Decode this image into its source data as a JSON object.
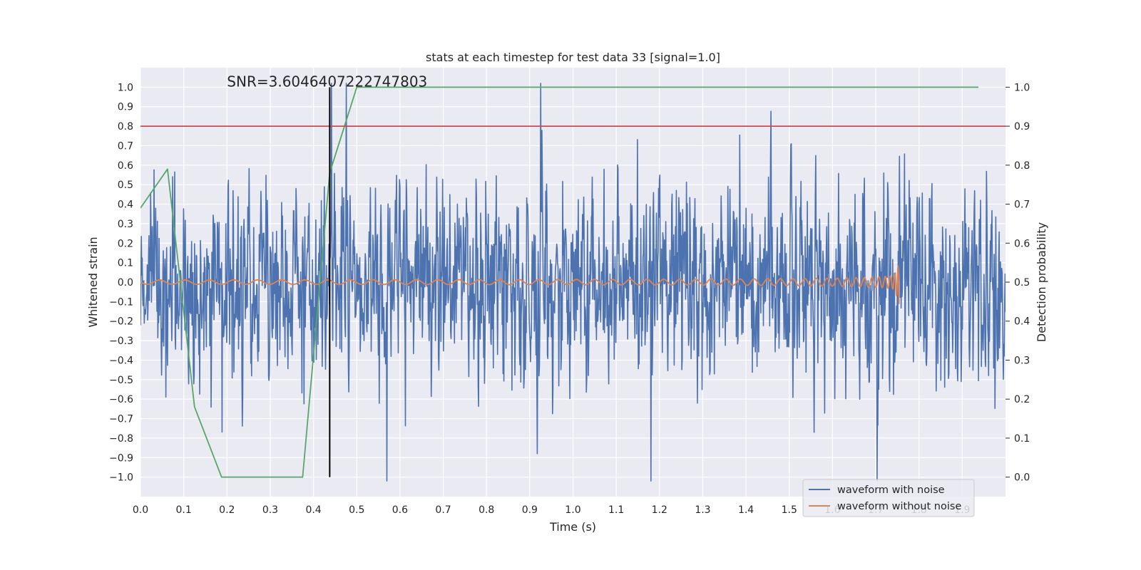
{
  "chart_data": {
    "type": "line",
    "title": "stats at each timestep for test data 33 [signal=1.0]",
    "annotation": "SNR=3.6046407222747803",
    "xlabel": "Time (s)",
    "ylabel": "Whitened strain",
    "y2label": "Detection probability",
    "xlim": [
      0.0,
      2.0
    ],
    "ylim": [
      -1.1,
      1.1
    ],
    "y2lim": [
      -0.05,
      1.05
    ],
    "xticks": [
      "0.0",
      "0.1",
      "0.2",
      "0.3",
      "0.4",
      "0.5",
      "0.6",
      "0.7",
      "0.8",
      "0.9",
      "1.0",
      "1.1",
      "1.2",
      "1.3",
      "1.4",
      "1.5",
      "1.6",
      "1.7",
      "1.8",
      "1.9"
    ],
    "yticks": [
      "1.0",
      "0.9",
      "0.8",
      "0.7",
      "0.6",
      "0.5",
      "0.4",
      "0.3",
      "0.2",
      "0.1",
      "0.0",
      "−0.1",
      "−0.2",
      "−0.3",
      "−0.4",
      "−0.5",
      "−0.6",
      "−0.7",
      "−0.8",
      "−0.9",
      "−1.0"
    ],
    "y2ticks": [
      "1.0",
      "0.9",
      "0.8",
      "0.7",
      "0.6",
      "0.5",
      "0.4",
      "0.3",
      "0.2",
      "0.1",
      "0.0"
    ],
    "series": [
      {
        "name": "waveform with noise",
        "color": "#4c72b0",
        "axis": "left",
        "kind": "noise",
        "x_range": [
          0.0,
          2.0
        ],
        "amplitude": 0.33,
        "seed": 33
      },
      {
        "name": "waveform without noise",
        "color": "#dd8452",
        "axis": "left",
        "kind": "chirp",
        "x_range": [
          0.0,
          1.755
        ],
        "merger_time": 1.755
      },
      {
        "name": "detection probability",
        "color": "#55a868",
        "axis": "right",
        "x": [
          0.0,
          0.0625,
          0.125,
          0.1875,
          0.25,
          0.3125,
          0.375,
          0.4375,
          0.5,
          0.5625,
          0.625,
          0.6875,
          0.75,
          0.8125,
          0.875,
          0.9375,
          1.0,
          1.0625,
          1.125,
          1.1875,
          1.25,
          1.3125,
          1.375,
          1.4375,
          1.5,
          1.5625,
          1.625,
          1.6875,
          1.75,
          1.8125,
          1.875,
          1.9375
        ],
        "values": [
          0.69,
          0.79,
          0.18,
          0.0,
          0.0,
          0.0,
          0.0,
          0.78,
          1.0,
          1.0,
          1.0,
          1.0,
          1.0,
          1.0,
          1.0,
          1.0,
          1.0,
          1.0,
          1.0,
          1.0,
          1.0,
          1.0,
          1.0,
          1.0,
          1.0,
          1.0,
          1.0,
          1.0,
          1.0,
          1.0,
          1.0,
          1.0
        ]
      }
    ],
    "threshold_line": {
      "value": 0.9,
      "axis": "right",
      "color": "#c44e52"
    },
    "vertical_marker": {
      "x": 0.4375,
      "ymin": -1.0,
      "ymax": 1.0,
      "color": "#000000"
    },
    "legend": {
      "placement": "lower-right",
      "entries": [
        {
          "label": "waveform with noise",
          "color": "#4c72b0"
        },
        {
          "label": "waveform without noise",
          "color": "#dd8452"
        }
      ]
    },
    "style": {
      "background": "#eaeaf2",
      "grid_color": "#ffffff"
    }
  }
}
